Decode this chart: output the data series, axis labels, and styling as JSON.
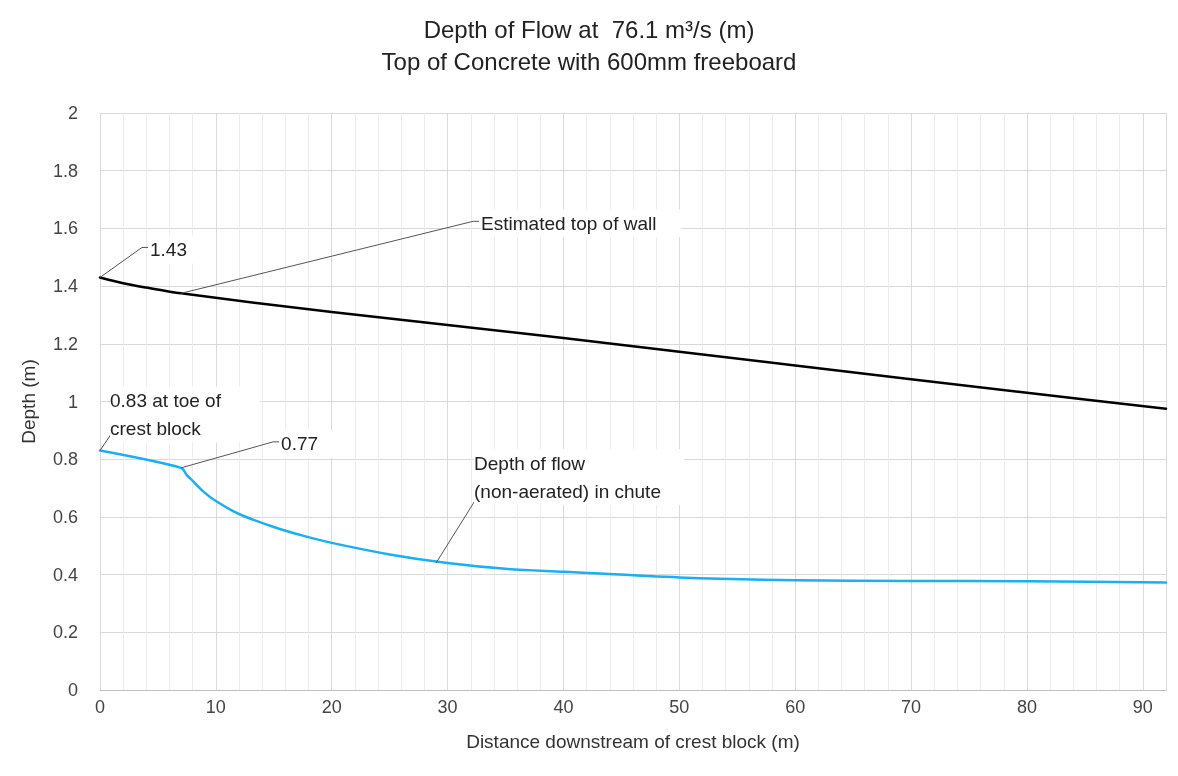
{
  "chart_data": {
    "type": "line",
    "title": "Depth of Flow at  76.1 m³/s (m)",
    "subtitle": "Top of Concrete with 600mm freeboard",
    "xlabel": "Distance downstream of crest block (m)",
    "ylabel": "Depth (m)",
    "xlim": [
      0,
      92
    ],
    "xticks": [
      0,
      10,
      20,
      30,
      40,
      50,
      60,
      70,
      80,
      90
    ],
    "ylim": [
      0,
      2
    ],
    "yticks": [
      0,
      0.2,
      0.4,
      0.6,
      0.8,
      1,
      1.2,
      1.4,
      1.6,
      1.8,
      2
    ],
    "grid": true,
    "marker": "none",
    "line_style": "solid",
    "series": [
      {
        "color": "#000000",
        "x": [
          0,
          2,
          4,
          7,
          20,
          40,
          60,
          80,
          92
        ],
        "values": [
          1.43,
          1.41,
          1.395,
          1.375,
          1.31,
          1.22,
          1.125,
          1.03,
          0.975
        ]
      },
      {
        "color": "#1ab0f0",
        "x": [
          0,
          7,
          7.5,
          8,
          9,
          10,
          12,
          15,
          17.5,
          20,
          25,
          30,
          35,
          40,
          50,
          60,
          70,
          80,
          92
        ],
        "values": [
          0.83,
          0.77,
          0.745,
          0.725,
          0.685,
          0.655,
          0.61,
          0.565,
          0.535,
          0.51,
          0.47,
          0.44,
          0.42,
          0.41,
          0.39,
          0.38,
          0.378,
          0.377,
          0.373
        ]
      }
    ],
    "annotations": [
      {
        "text": "1.43",
        "x": 0,
        "y": 1.43
      },
      {
        "text": "Estimated top of wall",
        "x": 7,
        "y": 1.375
      },
      {
        "text": "0.83 at toe of crest block",
        "x": 0,
        "y": 0.83
      },
      {
        "text": "0.77",
        "x": 7,
        "y": 0.77
      },
      {
        "text": "Depth of flow (non-aerated) in chute",
        "x": 29,
        "y": 0.44
      }
    ]
  }
}
